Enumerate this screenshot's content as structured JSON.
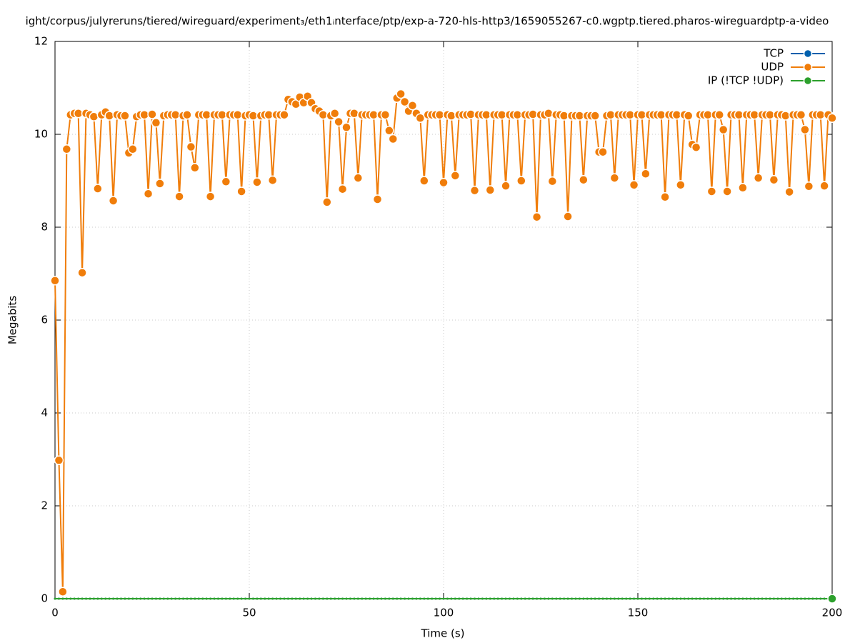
{
  "chart_data": {
    "type": "line",
    "title": "ight/corpus/julyreruns/tiered/wireguard/experiment₃/eth1ᵢnterface/ptp/exp-a-720-hls-http3/1659055267-c0.wgptp.tiered.pharos-wireguardptp-a-video",
    "x_label": "Time (s)",
    "y_label": "Megabits",
    "xlim": [
      0,
      200
    ],
    "xticks": [
      0,
      50,
      100,
      150,
      200
    ],
    "ylim": [
      0,
      12
    ],
    "yticks": [
      0,
      2,
      4,
      6,
      8,
      10,
      12
    ],
    "grid": true,
    "legend": "top-right",
    "x": [
      0,
      1,
      2,
      3,
      4,
      5,
      6,
      7,
      8,
      9,
      10,
      11,
      12,
      13,
      14,
      15,
      16,
      17,
      18,
      19,
      20,
      21,
      22,
      23,
      24,
      25,
      26,
      27,
      28,
      29,
      30,
      31,
      32,
      33,
      34,
      35,
      36,
      37,
      38,
      39,
      40,
      41,
      42,
      43,
      44,
      45,
      46,
      47,
      48,
      49,
      50,
      51,
      52,
      53,
      54,
      55,
      56,
      57,
      58,
      59,
      60,
      61,
      62,
      63,
      64,
      65,
      66,
      67,
      68,
      69,
      70,
      71,
      72,
      73,
      74,
      75,
      76,
      77,
      78,
      79,
      80,
      81,
      82,
      83,
      84,
      85,
      86,
      87,
      88,
      89,
      90,
      91,
      92,
      93,
      94,
      95,
      96,
      97,
      98,
      99,
      100,
      101,
      102,
      103,
      104,
      105,
      106,
      107,
      108,
      109,
      110,
      111,
      112,
      113,
      114,
      115,
      116,
      117,
      118,
      119,
      120,
      121,
      122,
      123,
      124,
      125,
      126,
      127,
      128,
      129,
      130,
      131,
      132,
      133,
      134,
      135,
      136,
      137,
      138,
      139,
      140,
      141,
      142,
      143,
      144,
      145,
      146,
      147,
      148,
      149,
      150,
      151,
      152,
      153,
      154,
      155,
      156,
      157,
      158,
      159,
      160,
      161,
      162,
      163,
      164,
      165,
      166,
      167,
      168,
      169,
      170,
      171,
      172,
      173,
      174,
      175,
      176,
      177,
      178,
      179,
      180,
      181,
      182,
      183,
      184,
      185,
      186,
      187,
      188,
      189,
      190,
      191,
      192,
      193,
      194,
      195,
      196,
      197,
      198,
      199,
      200
    ],
    "series": [
      {
        "name": "TCP",
        "color": "#0060ad",
        "values": [
          0,
          0,
          0,
          0,
          0,
          0,
          0,
          0,
          0,
          0,
          0,
          0,
          0,
          0,
          0,
          0,
          0,
          0,
          0,
          0,
          0,
          0,
          0,
          0,
          0,
          0,
          0,
          0,
          0,
          0,
          0,
          0,
          0,
          0,
          0,
          0,
          0,
          0,
          0,
          0,
          0,
          0,
          0,
          0,
          0,
          0,
          0,
          0,
          0,
          0,
          0,
          0,
          0,
          0,
          0,
          0,
          0,
          0,
          0,
          0,
          0,
          0,
          0,
          0,
          0,
          0,
          0,
          0,
          0,
          0,
          0,
          0,
          0,
          0,
          0,
          0,
          0,
          0,
          0,
          0,
          0,
          0,
          0,
          0,
          0,
          0,
          0,
          0,
          0,
          0,
          0,
          0,
          0,
          0,
          0,
          0,
          0,
          0,
          0,
          0,
          0,
          0,
          0,
          0,
          0,
          0,
          0,
          0,
          0,
          0,
          0,
          0,
          0,
          0,
          0,
          0,
          0,
          0,
          0,
          0,
          0,
          0,
          0,
          0,
          0,
          0,
          0,
          0,
          0,
          0,
          0,
          0,
          0,
          0,
          0,
          0,
          0,
          0,
          0,
          0,
          0,
          0,
          0,
          0,
          0,
          0,
          0,
          0,
          0,
          0,
          0,
          0,
          0,
          0,
          0,
          0,
          0,
          0,
          0,
          0,
          0,
          0,
          0,
          0,
          0,
          0,
          0,
          0,
          0,
          0,
          0,
          0,
          0,
          0,
          0,
          0,
          0,
          0,
          0,
          0,
          0,
          0,
          0,
          0,
          0,
          0,
          0,
          0,
          0,
          0,
          0,
          0,
          0,
          0,
          0,
          0,
          0,
          0,
          0,
          0,
          0
        ]
      },
      {
        "name": "UDP",
        "color": "#f07d0a",
        "values": [
          6.85,
          2.98,
          0.15,
          9.68,
          10.42,
          10.45,
          10.45,
          7.02,
          10.45,
          10.42,
          10.38,
          8.83,
          10.42,
          10.48,
          10.4,
          8.57,
          10.42,
          10.4,
          10.4,
          9.6,
          9.68,
          10.38,
          10.42,
          10.42,
          8.72,
          10.43,
          10.25,
          8.94,
          10.4,
          10.42,
          10.42,
          10.42,
          8.66,
          10.4,
          10.42,
          9.73,
          9.28,
          10.42,
          10.42,
          10.42,
          8.66,
          10.42,
          10.42,
          10.42,
          8.98,
          10.42,
          10.42,
          10.42,
          8.77,
          10.4,
          10.42,
          10.4,
          8.97,
          10.4,
          10.42,
          10.42,
          9.01,
          10.42,
          10.42,
          10.42,
          10.75,
          10.7,
          10.65,
          10.8,
          10.68,
          10.82,
          10.68,
          10.55,
          10.5,
          10.42,
          8.54,
          10.4,
          10.45,
          10.27,
          8.82,
          10.15,
          10.45,
          10.45,
          9.06,
          10.42,
          10.42,
          10.42,
          10.42,
          8.6,
          10.42,
          10.42,
          10.08,
          9.9,
          10.78,
          10.87,
          10.7,
          10.5,
          10.62,
          10.45,
          10.35,
          9.0,
          10.42,
          10.42,
          10.42,
          10.42,
          8.96,
          10.42,
          10.4,
          9.11,
          10.42,
          10.42,
          10.42,
          10.43,
          8.79,
          10.42,
          10.42,
          10.42,
          8.8,
          10.42,
          10.42,
          10.42,
          8.89,
          10.42,
          10.42,
          10.42,
          9.0,
          10.42,
          10.42,
          10.43,
          8.22,
          10.42,
          10.42,
          10.45,
          8.99,
          10.42,
          10.42,
          10.4,
          8.23,
          10.4,
          10.4,
          10.4,
          9.02,
          10.4,
          10.4,
          10.4,
          9.62,
          9.62,
          10.4,
          10.42,
          9.06,
          10.42,
          10.42,
          10.42,
          10.42,
          8.91,
          10.42,
          10.42,
          9.15,
          10.42,
          10.42,
          10.42,
          10.42,
          8.65,
          10.42,
          10.42,
          10.42,
          8.91,
          10.42,
          10.4,
          9.78,
          9.72,
          10.42,
          10.42,
          10.42,
          8.77,
          10.42,
          10.42,
          10.1,
          8.77,
          10.42,
          10.42,
          10.42,
          8.85,
          10.42,
          10.42,
          10.42,
          9.06,
          10.42,
          10.42,
          10.42,
          9.02,
          10.42,
          10.42,
          10.4,
          8.76,
          10.42,
          10.42,
          10.42,
          10.1,
          8.88,
          10.42,
          10.42,
          10.42,
          8.89,
          10.42,
          10.35
        ]
      },
      {
        "name": "IP (!TCP  !UDP)",
        "color": "#2ca02c",
        "values": [
          0,
          0,
          0,
          0,
          0,
          0,
          0,
          0,
          0,
          0,
          0,
          0,
          0,
          0,
          0,
          0,
          0,
          0,
          0,
          0,
          0,
          0,
          0,
          0,
          0,
          0,
          0,
          0,
          0,
          0,
          0,
          0,
          0,
          0,
          0,
          0,
          0,
          0,
          0,
          0,
          0,
          0,
          0,
          0,
          0,
          0,
          0,
          0,
          0,
          0,
          0,
          0,
          0,
          0,
          0,
          0,
          0,
          0,
          0,
          0,
          0,
          0,
          0,
          0,
          0,
          0,
          0,
          0,
          0,
          0,
          0,
          0,
          0,
          0,
          0,
          0,
          0,
          0,
          0,
          0,
          0,
          0,
          0,
          0,
          0,
          0,
          0,
          0,
          0,
          0,
          0,
          0,
          0,
          0,
          0,
          0,
          0,
          0,
          0,
          0,
          0,
          0,
          0,
          0,
          0,
          0,
          0,
          0,
          0,
          0,
          0,
          0,
          0,
          0,
          0,
          0,
          0,
          0,
          0,
          0,
          0,
          0,
          0,
          0,
          0,
          0,
          0,
          0,
          0,
          0,
          0,
          0,
          0,
          0,
          0,
          0,
          0,
          0,
          0,
          0,
          0,
          0,
          0,
          0,
          0,
          0,
          0,
          0,
          0,
          0,
          0,
          0,
          0,
          0,
          0,
          0,
          0,
          0,
          0,
          0,
          0,
          0,
          0,
          0,
          0,
          0,
          0,
          0,
          0,
          0,
          0,
          0,
          0,
          0,
          0,
          0,
          0,
          0,
          0,
          0,
          0,
          0,
          0,
          0,
          0,
          0,
          0,
          0,
          0,
          0,
          0,
          0,
          0,
          0,
          0,
          0,
          0,
          0,
          0,
          0,
          0
        ]
      }
    ]
  }
}
